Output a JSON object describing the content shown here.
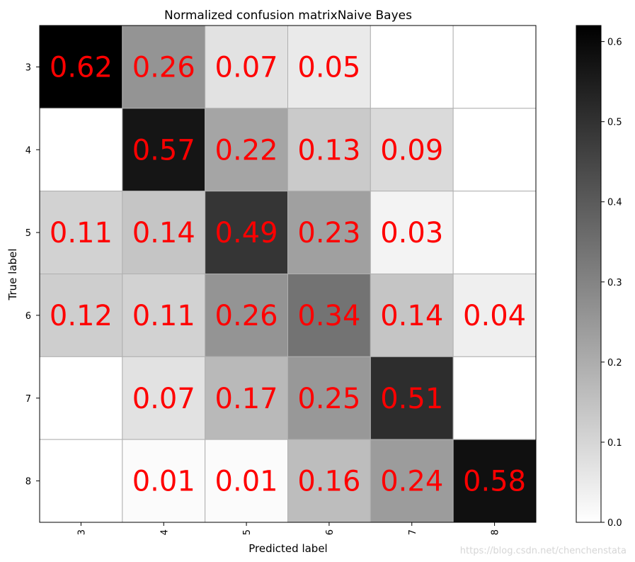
{
  "chart_data": {
    "type": "heatmap",
    "title": "Normalized confusion matrixNaive Bayes",
    "xlabel": "Predicted label",
    "ylabel": "True label",
    "x_categories": [
      "3",
      "4",
      "5",
      "6",
      "7",
      "8"
    ],
    "y_categories": [
      "3",
      "4",
      "5",
      "6",
      "7",
      "8"
    ],
    "values": [
      [
        0.62,
        0.26,
        0.07,
        0.05,
        0.0,
        0.0
      ],
      [
        0.0,
        0.57,
        0.22,
        0.13,
        0.09,
        0.0
      ],
      [
        0.11,
        0.14,
        0.49,
        0.23,
        0.03,
        0.0
      ],
      [
        0.12,
        0.11,
        0.26,
        0.34,
        0.14,
        0.04
      ],
      [
        0.0,
        0.07,
        0.17,
        0.25,
        0.51,
        0.0
      ],
      [
        0.0,
        0.01,
        0.01,
        0.16,
        0.24,
        0.58
      ]
    ],
    "cell_labels": [
      [
        "0.62",
        "0.26",
        "0.07",
        "0.05",
        "",
        ""
      ],
      [
        "",
        "0.57",
        "0.22",
        "0.13",
        "0.09",
        ""
      ],
      [
        "0.11",
        "0.14",
        "0.49",
        "0.23",
        "0.03",
        ""
      ],
      [
        "0.12",
        "0.11",
        "0.26",
        "0.34",
        "0.14",
        "0.04"
      ],
      [
        "",
        "0.07",
        "0.17",
        "0.25",
        "0.51",
        ""
      ],
      [
        "",
        "0.01",
        "0.01",
        "0.16",
        "0.24",
        "0.58"
      ]
    ],
    "colormap": "greys",
    "vmin": 0,
    "vmax": 0.62,
    "colorbar_ticks": [
      "0.0",
      "0.1",
      "0.2",
      "0.3",
      "0.4",
      "0.5",
      "0.6"
    ],
    "colorbar_tick_values": [
      0,
      0.1,
      0.2,
      0.3,
      0.4,
      0.5,
      0.6
    ],
    "label_color": "#ff0000",
    "grid": true
  },
  "watermark": "https://blog.csdn.net/chenchenstata"
}
